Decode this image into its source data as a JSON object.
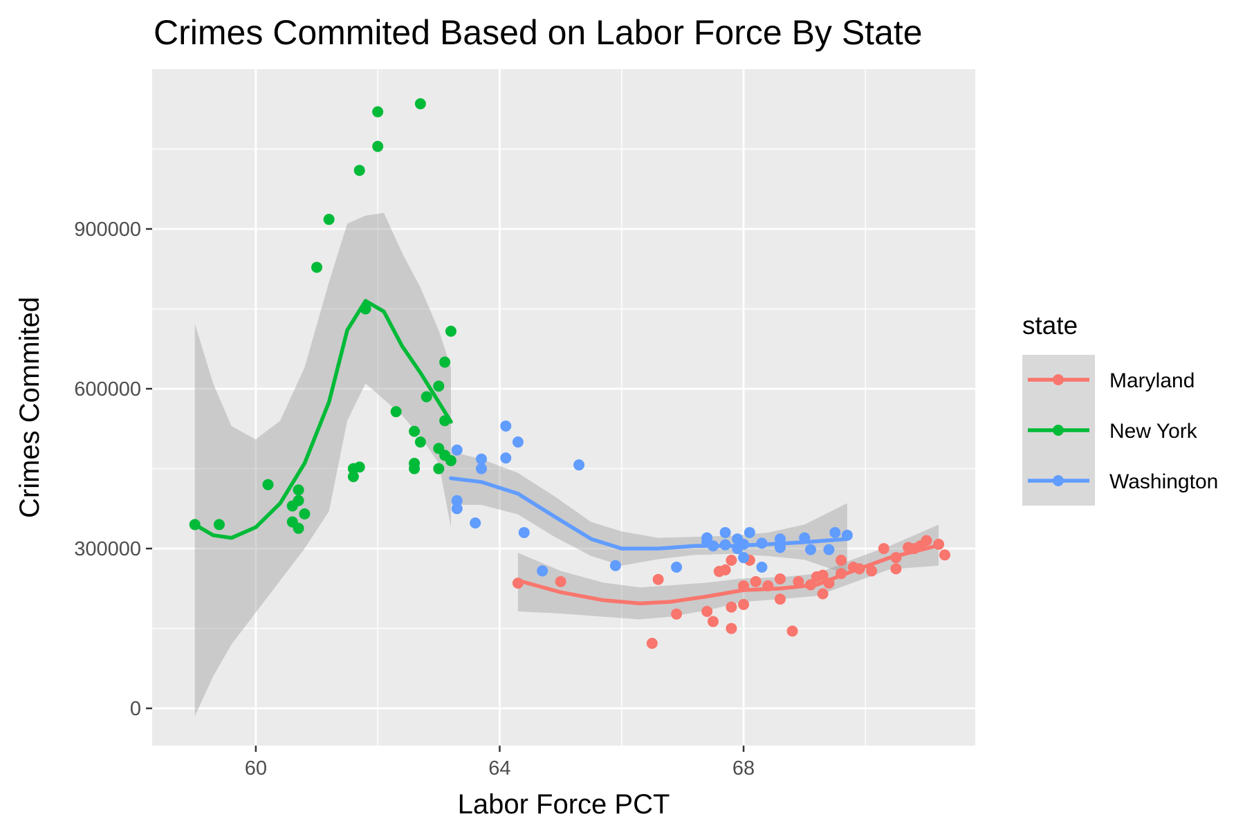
{
  "chart_data": {
    "type": "scatter",
    "title": "Crimes Commited Based on Labor Force By State",
    "xlabel": "Labor Force PCT",
    "ylabel": "Crimes Commited",
    "xlim": [
      58.3,
      71.8
    ],
    "ylim": [
      -70000,
      1200000
    ],
    "x_ticks": [
      60,
      64,
      68
    ],
    "x_tick_labels": [
      "60",
      "64",
      "68"
    ],
    "x_minor_ticks": [
      62,
      66,
      70
    ],
    "y_ticks": [
      0,
      300000,
      600000,
      900000
    ],
    "y_tick_labels": [
      "0",
      "300000",
      "600000",
      "900000"
    ],
    "y_minor_ticks": [
      150000,
      450000,
      750000,
      1050000
    ],
    "grid": true,
    "background": "#ebebeb",
    "legend": {
      "title": "state",
      "placement": "right"
    },
    "series": [
      {
        "name": "Maryland",
        "color": "#f8766d",
        "points": [
          [
            64.3,
            235000
          ],
          [
            65.0,
            238000
          ],
          [
            66.5,
            122000
          ],
          [
            66.6,
            242000
          ],
          [
            66.9,
            177000
          ],
          [
            67.4,
            182000
          ],
          [
            67.5,
            163000
          ],
          [
            67.6,
            257000
          ],
          [
            67.7,
            260000
          ],
          [
            67.8,
            150000
          ],
          [
            67.8,
            190000
          ],
          [
            67.8,
            278000
          ],
          [
            68.0,
            230000
          ],
          [
            68.0,
            195000
          ],
          [
            68.1,
            278000
          ],
          [
            68.2,
            238000
          ],
          [
            68.4,
            230000
          ],
          [
            68.6,
            243000
          ],
          [
            68.6,
            205000
          ],
          [
            68.8,
            145000
          ],
          [
            68.9,
            238000
          ],
          [
            69.1,
            232000
          ],
          [
            69.2,
            247000
          ],
          [
            69.3,
            250000
          ],
          [
            69.3,
            215000
          ],
          [
            69.4,
            235000
          ],
          [
            69.6,
            278000
          ],
          [
            69.6,
            253000
          ],
          [
            69.8,
            265000
          ],
          [
            69.9,
            262000
          ],
          [
            70.1,
            258000
          ],
          [
            70.3,
            300000
          ],
          [
            70.5,
            262000
          ],
          [
            70.5,
            283000
          ],
          [
            70.7,
            302000
          ],
          [
            70.8,
            300000
          ],
          [
            70.9,
            305000
          ],
          [
            71.0,
            315000
          ],
          [
            71.2,
            308000
          ],
          [
            71.3,
            288000
          ]
        ],
        "smooth": [
          [
            64.3,
            240000
          ],
          [
            65.0,
            218000
          ],
          [
            65.7,
            203000
          ],
          [
            66.3,
            197000
          ],
          [
            66.8,
            200000
          ],
          [
            67.4,
            210000
          ],
          [
            68.0,
            222000
          ],
          [
            68.6,
            225000
          ],
          [
            69.2,
            232000
          ],
          [
            69.8,
            258000
          ],
          [
            70.4,
            283000
          ],
          [
            71.2,
            306000
          ]
        ],
        "ribbon_upper": [
          [
            64.3,
            292000
          ],
          [
            65.0,
            258000
          ],
          [
            65.7,
            236000
          ],
          [
            66.3,
            227000
          ],
          [
            66.8,
            231000
          ],
          [
            67.4,
            236000
          ],
          [
            68.0,
            244000
          ],
          [
            68.6,
            246000
          ],
          [
            69.2,
            253000
          ],
          [
            69.8,
            280000
          ],
          [
            70.4,
            305000
          ],
          [
            71.2,
            345000
          ]
        ],
        "ribbon_lower": [
          [
            64.3,
            182000
          ],
          [
            65.0,
            178000
          ],
          [
            65.7,
            172000
          ],
          [
            66.3,
            167000
          ],
          [
            66.8,
            172000
          ],
          [
            67.4,
            184000
          ],
          [
            68.0,
            200000
          ],
          [
            68.6,
            205000
          ],
          [
            69.2,
            211000
          ],
          [
            69.8,
            236000
          ],
          [
            70.4,
            261000
          ],
          [
            71.2,
            268000
          ]
        ]
      },
      {
        "name": "New York",
        "color": "#00ba38",
        "points": [
          [
            59.0,
            345000
          ],
          [
            59.4,
            345000
          ],
          [
            60.2,
            420000
          ],
          [
            60.6,
            380000
          ],
          [
            60.6,
            350000
          ],
          [
            60.7,
            390000
          ],
          [
            60.7,
            410000
          ],
          [
            60.7,
            338000
          ],
          [
            60.8,
            365000
          ],
          [
            61.0,
            828000
          ],
          [
            61.2,
            918000
          ],
          [
            61.6,
            435000
          ],
          [
            61.6,
            450000
          ],
          [
            61.7,
            453000
          ],
          [
            61.7,
            1010000
          ],
          [
            61.8,
            750000
          ],
          [
            62.0,
            1055000
          ],
          [
            62.0,
            1120000
          ],
          [
            62.3,
            557000
          ],
          [
            62.6,
            450000
          ],
          [
            62.6,
            460000
          ],
          [
            62.6,
            520000
          ],
          [
            62.7,
            500000
          ],
          [
            62.7,
            1135000
          ],
          [
            62.8,
            585000
          ],
          [
            63.0,
            450000
          ],
          [
            63.0,
            605000
          ],
          [
            63.0,
            488000
          ],
          [
            63.1,
            650000
          ],
          [
            63.1,
            540000
          ],
          [
            63.1,
            475000
          ],
          [
            63.2,
            465000
          ],
          [
            63.2,
            708000
          ]
        ],
        "smooth": [
          [
            59.0,
            345000
          ],
          [
            59.3,
            325000
          ],
          [
            59.6,
            320000
          ],
          [
            60.0,
            340000
          ],
          [
            60.4,
            385000
          ],
          [
            60.8,
            460000
          ],
          [
            61.2,
            575000
          ],
          [
            61.5,
            710000
          ],
          [
            61.8,
            765000
          ],
          [
            62.1,
            745000
          ],
          [
            62.4,
            680000
          ],
          [
            62.7,
            630000
          ],
          [
            63.0,
            575000
          ],
          [
            63.2,
            538000
          ]
        ],
        "ribbon_upper": [
          [
            59.0,
            722000
          ],
          [
            59.3,
            610000
          ],
          [
            59.6,
            530000
          ],
          [
            60.0,
            505000
          ],
          [
            60.4,
            540000
          ],
          [
            60.8,
            640000
          ],
          [
            61.2,
            800000
          ],
          [
            61.5,
            910000
          ],
          [
            61.8,
            925000
          ],
          [
            62.1,
            930000
          ],
          [
            62.4,
            855000
          ],
          [
            62.7,
            790000
          ],
          [
            63.0,
            710000
          ],
          [
            63.2,
            640000
          ]
        ],
        "ribbon_lower": [
          [
            59.0,
            -15000
          ],
          [
            59.3,
            60000
          ],
          [
            59.6,
            120000
          ],
          [
            60.0,
            180000
          ],
          [
            60.4,
            240000
          ],
          [
            60.8,
            300000
          ],
          [
            61.2,
            370000
          ],
          [
            61.5,
            540000
          ],
          [
            61.8,
            610000
          ],
          [
            62.1,
            580000
          ],
          [
            62.4,
            550000
          ],
          [
            62.7,
            510000
          ],
          [
            63.0,
            460000
          ],
          [
            63.2,
            340000
          ]
        ]
      },
      {
        "name": "Washington",
        "color": "#619cff",
        "points": [
          [
            63.3,
            485000
          ],
          [
            63.3,
            390000
          ],
          [
            63.3,
            375000
          ],
          [
            63.6,
            348000
          ],
          [
            63.7,
            468000
          ],
          [
            63.7,
            450000
          ],
          [
            64.1,
            530000
          ],
          [
            64.1,
            470000
          ],
          [
            64.3,
            500000
          ],
          [
            64.4,
            330000
          ],
          [
            64.7,
            258000
          ],
          [
            65.3,
            457000
          ],
          [
            65.9,
            268000
          ],
          [
            66.9,
            265000
          ],
          [
            67.4,
            320000
          ],
          [
            67.4,
            312000
          ],
          [
            67.5,
            305000
          ],
          [
            67.7,
            330000
          ],
          [
            67.7,
            307000
          ],
          [
            67.9,
            318000
          ],
          [
            67.9,
            300000
          ],
          [
            68.0,
            308000
          ],
          [
            68.0,
            283000
          ],
          [
            68.1,
            330000
          ],
          [
            68.3,
            265000
          ],
          [
            68.3,
            310000
          ],
          [
            68.6,
            318000
          ],
          [
            68.6,
            302000
          ],
          [
            69.0,
            320000
          ],
          [
            69.1,
            298000
          ],
          [
            69.4,
            298000
          ],
          [
            69.5,
            330000
          ],
          [
            69.7,
            325000
          ]
        ],
        "smooth": [
          [
            63.2,
            432000
          ],
          [
            63.7,
            425000
          ],
          [
            64.3,
            403000
          ],
          [
            64.9,
            360000
          ],
          [
            65.5,
            318000
          ],
          [
            66.0,
            300000
          ],
          [
            66.6,
            300000
          ],
          [
            67.2,
            305000
          ],
          [
            67.8,
            305000
          ],
          [
            68.4,
            308000
          ],
          [
            69.0,
            312000
          ],
          [
            69.7,
            318000
          ]
        ],
        "ribbon_upper": [
          [
            63.2,
            482000
          ],
          [
            63.7,
            468000
          ],
          [
            64.3,
            442000
          ],
          [
            64.9,
            398000
          ],
          [
            65.5,
            350000
          ],
          [
            66.0,
            332000
          ],
          [
            66.6,
            320000
          ],
          [
            67.2,
            322000
          ],
          [
            67.8,
            324000
          ],
          [
            68.4,
            330000
          ],
          [
            69.0,
            345000
          ],
          [
            69.7,
            385000
          ]
        ],
        "ribbon_lower": [
          [
            63.2,
            382000
          ],
          [
            63.7,
            382000
          ],
          [
            64.3,
            364000
          ],
          [
            64.9,
            322000
          ],
          [
            65.5,
            286000
          ],
          [
            66.0,
            268000
          ],
          [
            66.6,
            280000
          ],
          [
            67.2,
            288000
          ],
          [
            67.8,
            290000
          ],
          [
            68.4,
            286000
          ],
          [
            69.0,
            279000
          ],
          [
            69.7,
            251000
          ]
        ]
      }
    ]
  }
}
